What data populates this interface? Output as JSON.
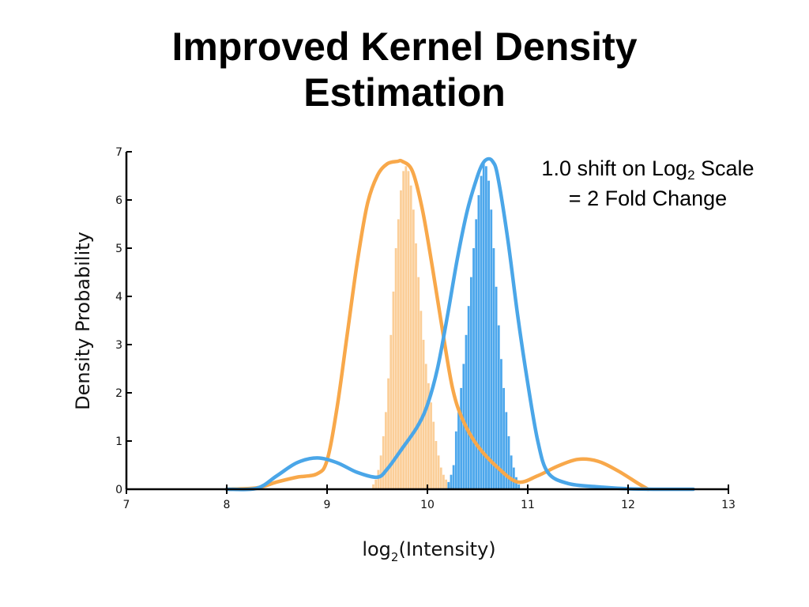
{
  "slide": {
    "title_line1": "Improved Kernel Density",
    "title_line2": "Estimation"
  },
  "annotation": {
    "line1_pre": "1.0 shift on Log",
    "line1_sub": "2",
    "line1_post": " Scale",
    "line2": "= 2 Fold Change"
  },
  "colors": {
    "orange_curve": "#F8A84A",
    "orange_hist": "#FBCB92",
    "blue_curve": "#4AA6E8",
    "blue_hist": "#3D9FEA",
    "overlap": "#A9B59A",
    "axis": "#000000"
  },
  "chart_data": {
    "type": "line",
    "xlabel_pre": "log",
    "xlabel_sub": "2",
    "xlabel_post": "(Intensity)",
    "ylabel": "Density Probability",
    "xlim": [
      7,
      13
    ],
    "ylim": [
      0,
      7
    ],
    "xticks": [
      7,
      8,
      9,
      10,
      11,
      12,
      13
    ],
    "yticks": [
      0,
      1,
      2,
      3,
      4,
      5,
      6,
      7
    ],
    "grid": false,
    "legend": "none",
    "series": [
      {
        "kind": "kde",
        "color_key": "orange_curve",
        "x": [
          8.0,
          8.3,
          8.5,
          8.7,
          8.9,
          9.0,
          9.1,
          9.2,
          9.3,
          9.4,
          9.5,
          9.6,
          9.7,
          9.75,
          9.85,
          9.95,
          10.05,
          10.15,
          10.25,
          10.35,
          10.5,
          10.7,
          10.9,
          11.1,
          11.3,
          11.5,
          11.7,
          11.9,
          12.1,
          12.2
        ],
        "values": [
          0.0,
          0.03,
          0.15,
          0.25,
          0.32,
          0.6,
          1.7,
          3.2,
          4.7,
          5.9,
          6.5,
          6.75,
          6.8,
          6.8,
          6.6,
          5.8,
          4.6,
          3.3,
          2.1,
          1.45,
          0.9,
          0.45,
          0.15,
          0.28,
          0.48,
          0.62,
          0.58,
          0.38,
          0.12,
          0.0
        ]
      },
      {
        "kind": "kde",
        "color_key": "blue_curve",
        "x": [
          8.0,
          8.3,
          8.5,
          8.7,
          8.9,
          9.1,
          9.3,
          9.5,
          9.6,
          9.75,
          9.9,
          10.0,
          10.1,
          10.2,
          10.3,
          10.4,
          10.5,
          10.55,
          10.6,
          10.65,
          10.7,
          10.8,
          10.9,
          11.0,
          11.1,
          11.2,
          11.4,
          11.7,
          12.0,
          12.3,
          12.65
        ],
        "values": [
          0.0,
          0.02,
          0.28,
          0.55,
          0.65,
          0.55,
          0.35,
          0.25,
          0.42,
          0.85,
          1.3,
          1.75,
          2.5,
          3.6,
          4.8,
          5.8,
          6.5,
          6.75,
          6.85,
          6.8,
          6.5,
          5.2,
          3.6,
          2.2,
          1.0,
          0.35,
          0.12,
          0.05,
          0.01,
          0.0,
          0.0
        ]
      },
      {
        "kind": "histogram",
        "color_key": "orange_hist",
        "bin_width": 0.025,
        "x": [
          9.45,
          9.475,
          9.5,
          9.525,
          9.55,
          9.575,
          9.6,
          9.625,
          9.65,
          9.675,
          9.7,
          9.725,
          9.75,
          9.775,
          9.8,
          9.825,
          9.85,
          9.875,
          9.9,
          9.925,
          9.95,
          9.975,
          10.0,
          10.025,
          10.05,
          10.075,
          10.1,
          10.125,
          10.15,
          10.175,
          10.2,
          10.225,
          10.25
        ],
        "values": [
          0.1,
          0.2,
          0.4,
          0.7,
          1.1,
          1.6,
          2.3,
          3.2,
          4.1,
          5.0,
          5.6,
          6.2,
          6.6,
          6.7,
          6.6,
          6.3,
          5.8,
          5.1,
          4.4,
          3.7,
          3.1,
          2.6,
          2.2,
          1.8,
          1.4,
          1.0,
          0.7,
          0.45,
          0.3,
          0.2,
          0.12,
          0.06,
          0.03
        ]
      },
      {
        "kind": "histogram",
        "color_key": "blue_hist",
        "bin_width": 0.025,
        "x": [
          10.2,
          10.225,
          10.25,
          10.275,
          10.3,
          10.325,
          10.35,
          10.375,
          10.4,
          10.425,
          10.45,
          10.475,
          10.5,
          10.525,
          10.55,
          10.575,
          10.6,
          10.625,
          10.65,
          10.675,
          10.7,
          10.725,
          10.75,
          10.775,
          10.8,
          10.825,
          10.85,
          10.875,
          10.9
        ],
        "values": [
          0.15,
          0.3,
          0.5,
          1.2,
          1.6,
          2.1,
          2.6,
          3.2,
          3.8,
          4.4,
          5.0,
          5.6,
          6.1,
          6.5,
          6.75,
          6.7,
          6.4,
          5.8,
          5.0,
          4.2,
          3.4,
          2.7,
          2.1,
          1.6,
          1.1,
          0.7,
          0.45,
          0.25,
          0.1
        ]
      }
    ]
  }
}
